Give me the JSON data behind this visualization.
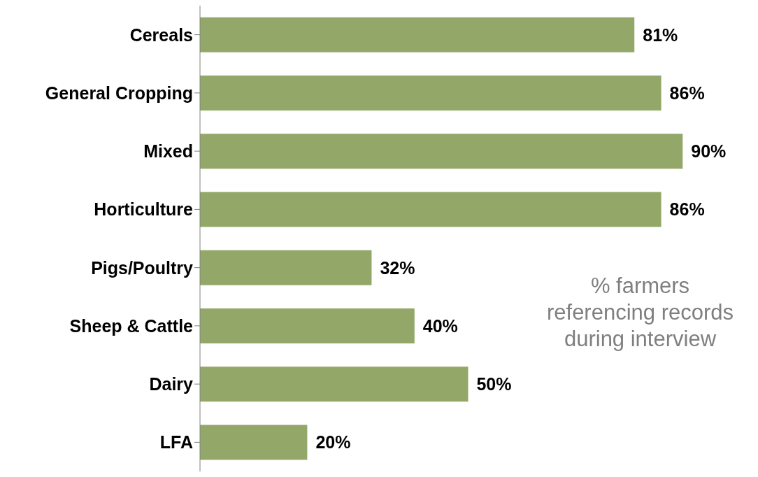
{
  "chart_data": {
    "type": "bar",
    "orientation": "horizontal",
    "categories": [
      "Cereals",
      "General Cropping",
      "Mixed",
      "Horticulture",
      "Pigs/Poultry",
      "Sheep & Cattle",
      "Dairy",
      "LFA"
    ],
    "values": [
      81,
      86,
      90,
      86,
      32,
      40,
      50,
      20
    ],
    "value_labels": [
      "81%",
      "86%",
      "90%",
      "86%",
      "32%",
      "40%",
      "50%",
      "20%"
    ],
    "color": "#93a868",
    "annotations": [
      "% farmers referencing records during interview"
    ],
    "grid": false,
    "legend": false
  }
}
